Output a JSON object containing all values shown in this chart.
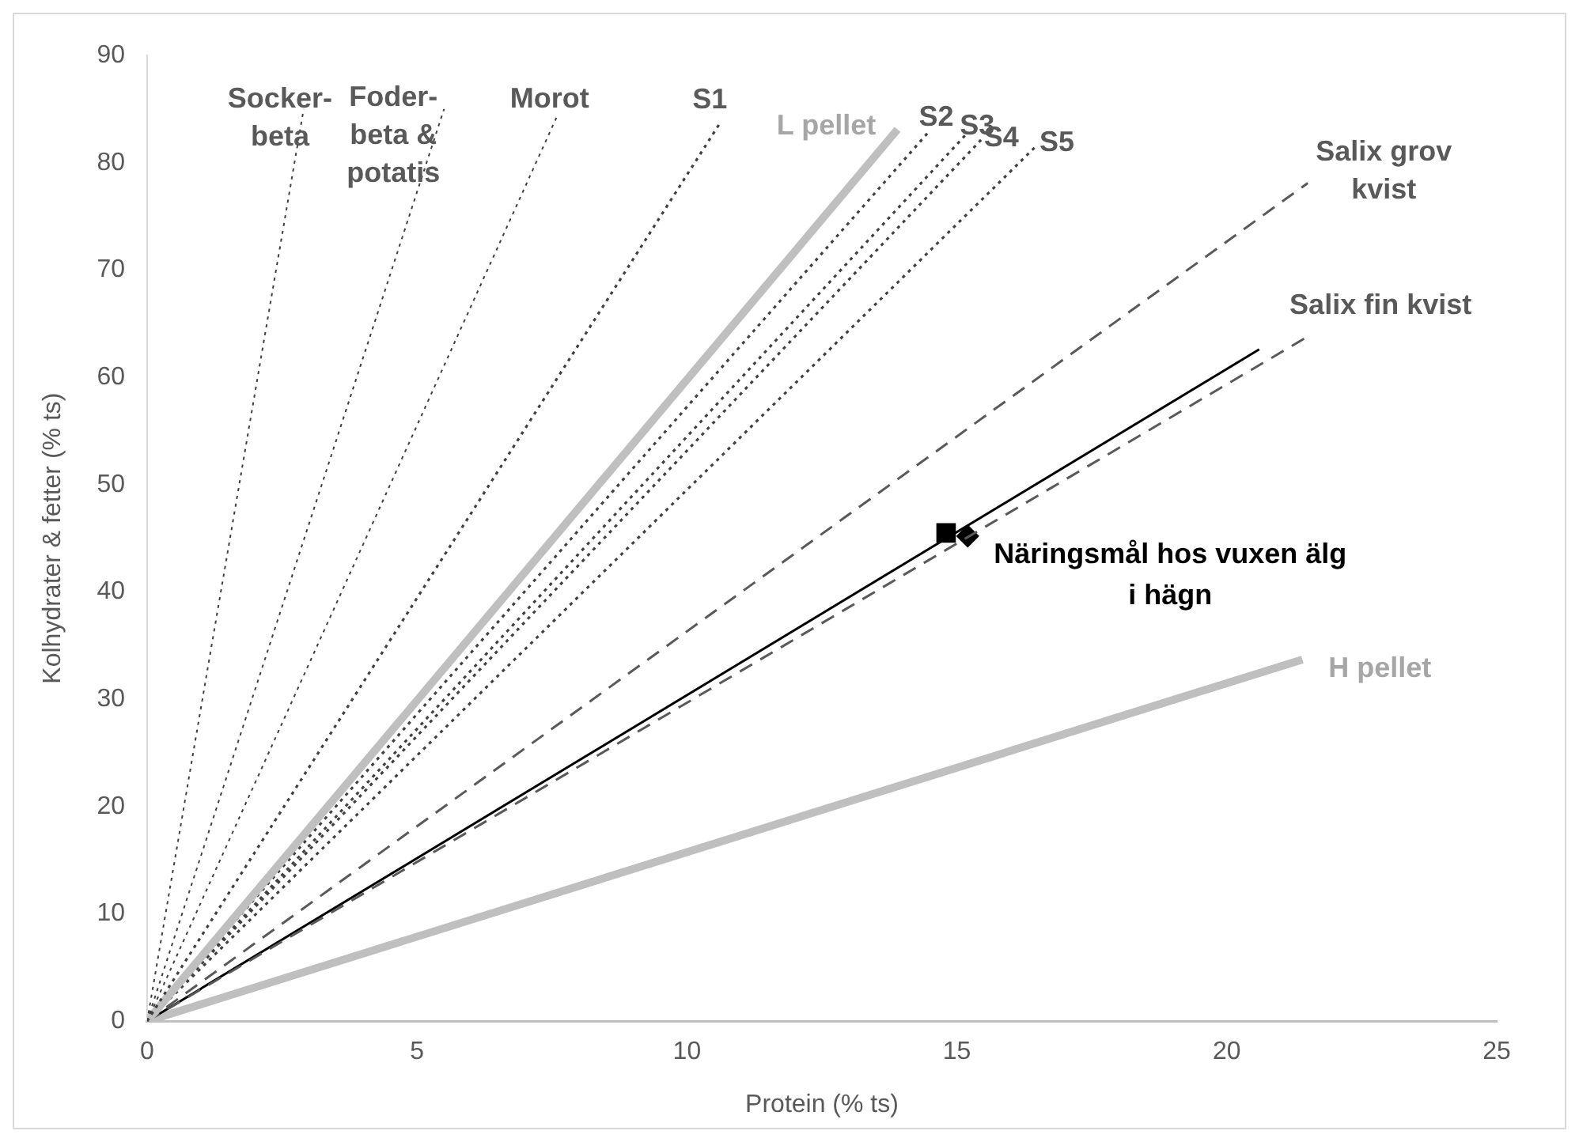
{
  "chart_data": {
    "type": "line",
    "xlabel": "Protein (% ts)",
    "ylabel": "Kolhydrater & fetter (% ts)",
    "xlim": [
      0,
      25
    ],
    "xticks": [
      0,
      5,
      10,
      15,
      20,
      25
    ],
    "ylim": [
      0,
      90
    ],
    "yticks": [
      0,
      10,
      20,
      30,
      40,
      50,
      60,
      70,
      80,
      90
    ],
    "grid": false,
    "legend": false,
    "marker": "none",
    "series": [
      {
        "name": "Socker-beta",
        "color": "#404040",
        "line_style": "dotted",
        "x": [
          0,
          2.9
        ],
        "values": [
          0,
          85
        ]
      },
      {
        "name": "Foder-beta & potatis",
        "color": "#404040",
        "line_style": "dotted",
        "x": [
          0,
          5.5
        ],
        "values": [
          0,
          85
        ]
      },
      {
        "name": "Morot",
        "color": "#404040",
        "line_style": "dotted",
        "x": [
          0,
          7.6
        ],
        "values": [
          0,
          84.4
        ]
      },
      {
        "name": "S1",
        "color": "#404040",
        "line_style": "dotted",
        "x": [
          0,
          10.6
        ],
        "values": [
          0,
          83.6
        ]
      },
      {
        "name": "L pellet",
        "color": "#bfbfbf",
        "line_style": "solid",
        "x": [
          0,
          13.9
        ],
        "values": [
          0,
          83.1
        ]
      },
      {
        "name": "S2",
        "color": "#404040",
        "line_style": "dotted",
        "x": [
          0,
          14.5
        ],
        "values": [
          0,
          83
        ]
      },
      {
        "name": "S3",
        "color": "#404040",
        "line_style": "dotted",
        "x": [
          0,
          15.2
        ],
        "values": [
          0,
          82.8
        ]
      },
      {
        "name": "S4",
        "color": "#404040",
        "line_style": "dotted",
        "x": [
          0,
          15.5
        ],
        "values": [
          0,
          82.4
        ]
      },
      {
        "name": "S5",
        "color": "#404040",
        "line_style": "dotted",
        "x": [
          0,
          16.5
        ],
        "values": [
          0,
          81.7
        ]
      },
      {
        "name": "Salix grov kvist",
        "color": "#595959",
        "line_style": "dashed",
        "x": [
          0,
          21.5
        ],
        "values": [
          0,
          78.1
        ]
      },
      {
        "name": "Salix fin kvist",
        "color": "#595959",
        "line_style": "dashed",
        "x": [
          0,
          21.5
        ],
        "values": [
          0,
          63.8
        ]
      },
      {
        "color": "#000000",
        "line_style": "solid",
        "x": [
          0,
          20.6
        ],
        "values": [
          0,
          62.6
        ]
      },
      {
        "name": "H pellet",
        "color": "#bfbfbf",
        "line_style": "solid",
        "x": [
          0,
          21.4
        ],
        "values": [
          0,
          33.7
        ]
      },
      {
        "type": "scatter",
        "color": "#000000",
        "marker": "square",
        "x": [
          14.8
        ],
        "values": [
          45.5
        ]
      },
      {
        "type": "scatter",
        "color": "#000000",
        "marker": "diamond",
        "x": [
          15.2
        ],
        "values": [
          45.2
        ]
      }
    ],
    "annotations": [
      {
        "text": "Näringsmål hos vuxen älg i hägn",
        "x": 15.2,
        "y": 45.2
      }
    ]
  }
}
